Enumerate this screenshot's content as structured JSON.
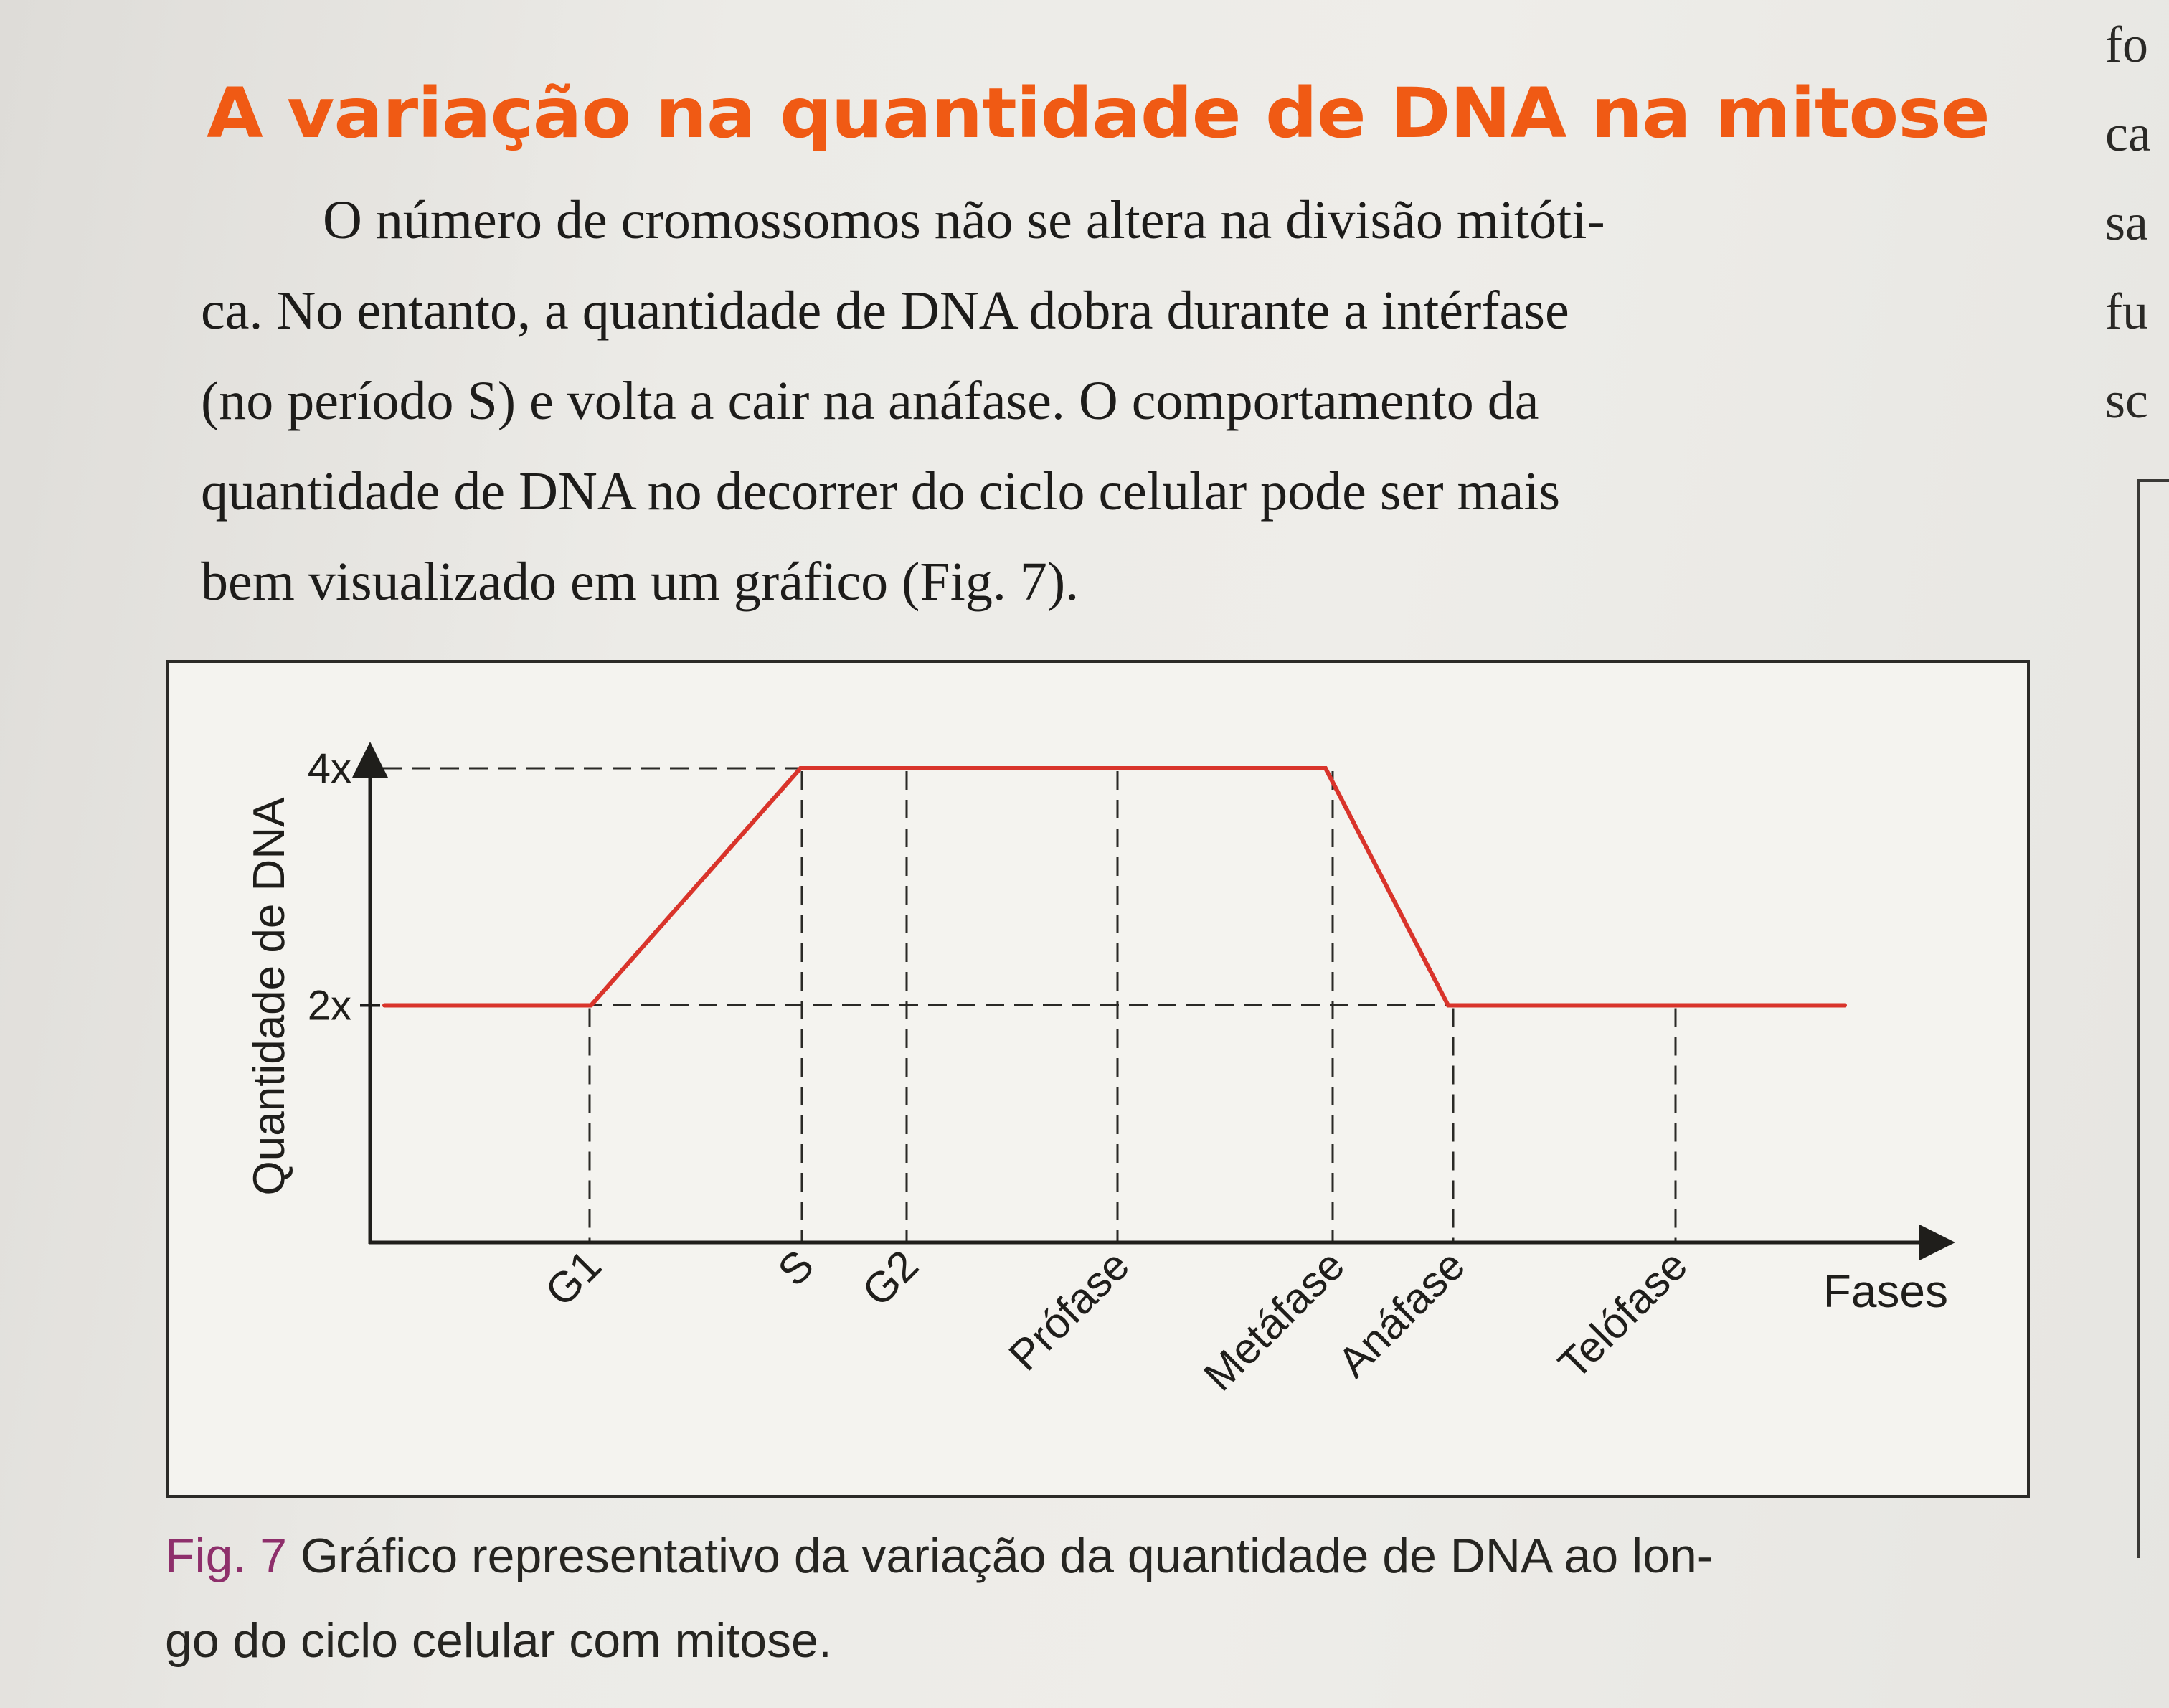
{
  "document": {
    "title": "A variação na quantidade de DNA na mitose",
    "body_lines": [
      "O número de cromossomos não se altera na divisão mitóti-",
      "ca. No entanto, a quantidade de DNA dobra durante a intérfase",
      "(no período S) e volta a cair na anáfase. O comportamento da",
      "quantidade de DNA no decorrer do ciclo celular pode ser mais",
      "bem visualizado em um gráfico (Fig. 7)."
    ],
    "margin_fragments": [
      "fo",
      "ca",
      "sa",
      "fu",
      "sc"
    ],
    "caption": {
      "label": "Fig. 7",
      "line1_rest": " Gráfico representativo da variação da quantidade de DNA ao lon-",
      "line2": "go do ciclo celular com mitose."
    }
  },
  "colors": {
    "title": "#f05a14",
    "curve": "#d9342b",
    "caption_label": "#8e2f6b"
  },
  "chart_data": {
    "type": "line",
    "title": "",
    "ylabel": "Quantidade de DNA",
    "xlabel": "Fases",
    "y_ticks": [
      {
        "label": "2x",
        "value": 2
      },
      {
        "label": "4x",
        "value": 4
      }
    ],
    "ylim": [
      0,
      5
    ],
    "categories": [
      "G1",
      "S",
      "G2",
      "Prófase",
      "Metáfase",
      "Anáfase",
      "Telófase"
    ],
    "series": [
      {
        "points": [
          {
            "x": "start",
            "y": 2
          },
          {
            "x": "G1",
            "y": 2
          },
          {
            "x": "S",
            "y": 4
          },
          {
            "x": "G2",
            "y": 4
          },
          {
            "x": "Prófase",
            "y": 4
          },
          {
            "x": "Metáfase",
            "y": 4
          },
          {
            "x": "Anáfase",
            "y": 2
          },
          {
            "x": "Telófase",
            "y": 2
          },
          {
            "x": "end",
            "y": 2
          }
        ]
      }
    ],
    "grid": false,
    "legend": "none"
  }
}
